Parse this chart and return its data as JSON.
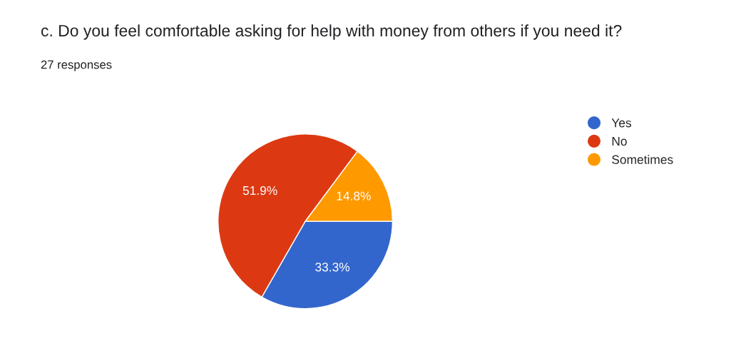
{
  "chart_data": {
    "type": "pie",
    "title": "c. Do you feel comfortable asking for help with money from others if you need it?",
    "subtitle": "27 responses",
    "categories": [
      "Yes",
      "No",
      "Sometimes"
    ],
    "values": [
      33.3,
      51.9,
      14.8
    ],
    "colors": [
      "#3366cc",
      "#dc3912",
      "#ff9900"
    ],
    "value_labels": [
      "33.3%",
      "51.9%",
      "14.8%"
    ],
    "legend": "right"
  }
}
